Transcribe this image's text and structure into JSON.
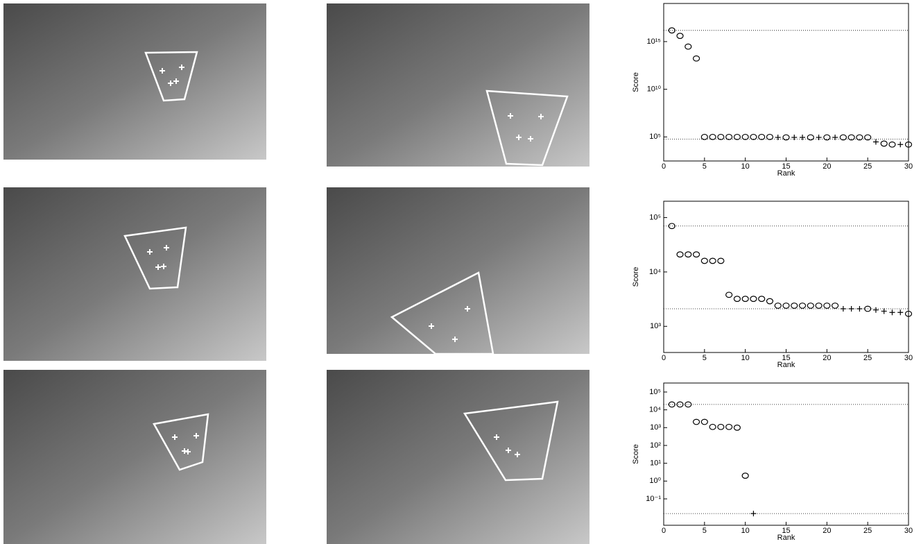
{
  "chart_data": [
    {
      "type": "scatter",
      "x_label": "Rank",
      "y_label": "Score",
      "yscale": "log",
      "x": [
        1,
        2,
        3,
        4,
        5,
        6,
        7,
        8,
        9,
        10,
        11,
        12,
        13,
        14,
        15,
        16,
        17,
        18,
        19,
        20,
        21,
        22,
        23,
        24,
        25,
        26,
        27,
        28,
        29,
        30
      ],
      "xlim": [
        0,
        30
      ],
      "xticks": [
        0,
        5,
        10,
        15,
        20,
        25,
        30
      ],
      "ylim": [
        300,
        1e+19
      ],
      "yticks": [
        {
          "value": 100000,
          "label": "10⁵"
        },
        {
          "value": 10000000000.0,
          "label": "10¹⁰"
        },
        {
          "value": 1000000000000000.0,
          "label": "10¹⁵"
        }
      ],
      "reference_lines": [
        1.5e+16,
        60000
      ],
      "series": [
        {
          "marker": "circle",
          "color": "#000000",
          "values": [
            1.5e+16,
            4000000000000000.0,
            300000000000000.0,
            17000000000000.0,
            100000,
            100000,
            100000,
            100000,
            100000,
            100000,
            100000,
            100000,
            100000,
            null,
            90000,
            null,
            null,
            90000,
            null,
            90000,
            null,
            90000,
            90000,
            90000,
            90000,
            null,
            20000,
            16000,
            null,
            16000
          ]
        },
        {
          "marker": "plus",
          "color": "#000000",
          "values": [
            null,
            null,
            null,
            null,
            null,
            null,
            null,
            null,
            null,
            null,
            null,
            null,
            null,
            90000,
            null,
            90000,
            90000,
            null,
            90000,
            null,
            90000,
            null,
            null,
            null,
            null,
            30000,
            null,
            null,
            16000,
            null
          ]
        }
      ]
    },
    {
      "type": "scatter",
      "x_label": "Rank",
      "y_label": "Score",
      "yscale": "log",
      "x": [
        1,
        2,
        3,
        4,
        5,
        6,
        7,
        8,
        9,
        10,
        11,
        12,
        13,
        14,
        15,
        16,
        17,
        18,
        19,
        20,
        21,
        22,
        23,
        24,
        25,
        26,
        27,
        28,
        29,
        30
      ],
      "xlim": [
        0,
        30
      ],
      "xticks": [
        0,
        5,
        10,
        15,
        20,
        25,
        30
      ],
      "ylim": [
        330,
        200000
      ],
      "yticks": [
        {
          "value": 1000,
          "label": "10³"
        },
        {
          "value": 10000,
          "label": "10⁴"
        },
        {
          "value": 100000,
          "label": "10⁵"
        }
      ],
      "reference_lines": [
        70000,
        2100
      ],
      "series": [
        {
          "marker": "circle",
          "color": "#000000",
          "values": [
            70000,
            21000,
            21000,
            21000,
            16000,
            16000,
            16000,
            3800,
            3200,
            3200,
            3200,
            3200,
            2900,
            2400,
            2400,
            2400,
            2400,
            2400,
            2400,
            2400,
            2400,
            null,
            null,
            null,
            2100,
            null,
            null,
            null,
            null,
            1700
          ]
        },
        {
          "marker": "plus",
          "color": "#000000",
          "values": [
            null,
            null,
            null,
            null,
            null,
            null,
            null,
            null,
            null,
            null,
            null,
            null,
            null,
            null,
            null,
            null,
            null,
            null,
            null,
            null,
            null,
            2100,
            2100,
            2100,
            null,
            2000,
            1900,
            1800,
            1800,
            null
          ]
        }
      ]
    },
    {
      "type": "scatter",
      "x_label": "Rank",
      "y_label": "Score",
      "yscale": "log",
      "x": [
        1,
        2,
        3,
        4,
        5,
        6,
        7,
        8,
        9,
        10,
        11
      ],
      "xlim": [
        0,
        30
      ],
      "xticks": [
        0,
        5,
        10,
        15,
        20,
        25,
        30
      ],
      "ylim": [
        0.0033,
        320000
      ],
      "yticks": [
        {
          "value": 0.1,
          "label": "10⁻¹"
        },
        {
          "value": 1,
          "label": "10⁰"
        },
        {
          "value": 10,
          "label": "10¹"
        },
        {
          "value": 100,
          "label": "10²"
        },
        {
          "value": 1000,
          "label": "10³"
        },
        {
          "value": 10000,
          "label": "10⁴"
        },
        {
          "value": 100000,
          "label": "10⁵"
        }
      ],
      "reference_lines": [
        20000,
        0.015
      ],
      "series": [
        {
          "marker": "circle",
          "color": "#000000",
          "values": [
            20000,
            20000,
            20000,
            2100,
            2100,
            1100,
            1100,
            1100,
            1000,
            2,
            null
          ]
        },
        {
          "marker": "plus",
          "color": "#000000",
          "values": [
            null,
            null,
            null,
            null,
            null,
            null,
            null,
            null,
            null,
            null,
            0.015
          ]
        }
      ]
    }
  ]
}
